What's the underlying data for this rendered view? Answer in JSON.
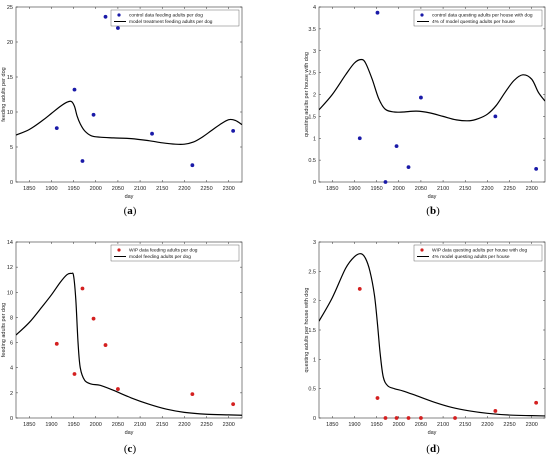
{
  "chart_data": [
    {
      "type": "scatter",
      "caption": "(a)",
      "xlabel": "day",
      "ylabel": "feeding adults per dog",
      "xlim": [
        1820,
        2330
      ],
      "ylim": [
        0,
        25
      ],
      "xticks": [
        1850,
        1900,
        1950,
        2000,
        2050,
        2100,
        2150,
        2200,
        2250,
        2300
      ],
      "yticks": [
        0,
        5,
        10,
        15,
        20,
        25
      ],
      "legend_position": "top-right",
      "series": [
        {
          "name": "control data feeding adults per dog",
          "kind": "scatter",
          "color": "#1a1aa8",
          "x": [
            1912,
            1952,
            1970,
            1995,
            2022,
            2050,
            2127,
            2218,
            2310
          ],
          "y": [
            7.7,
            13.2,
            3.0,
            9.6,
            23.6,
            22.0,
            6.9,
            2.4,
            7.3
          ]
        },
        {
          "name": "model treatment feeding adults per dog",
          "kind": "line",
          "color": "#000000",
          "x": [
            1820,
            1850,
            1880,
            1900,
            1920,
            1935,
            1945,
            1952,
            1958,
            1965,
            1975,
            1990,
            2010,
            2040,
            2080,
            2120,
            2150,
            2180,
            2200,
            2220,
            2240,
            2260,
            2280,
            2300,
            2315,
            2330
          ],
          "y": [
            6.7,
            7.5,
            8.8,
            9.8,
            10.8,
            11.4,
            11.5,
            10.8,
            9.4,
            8.3,
            7.3,
            6.6,
            6.4,
            6.3,
            6.2,
            5.9,
            5.6,
            5.4,
            5.4,
            5.7,
            6.4,
            7.3,
            8.2,
            8.9,
            8.8,
            8.2
          ]
        }
      ]
    },
    {
      "type": "scatter",
      "caption": "(b)",
      "xlabel": "day",
      "ylabel": "questing adults per house with dog",
      "xlim": [
        1820,
        2330
      ],
      "ylim": [
        0,
        4
      ],
      "xticks": [
        1850,
        1900,
        1950,
        2000,
        2050,
        2100,
        2150,
        2200,
        2250,
        2300
      ],
      "yticks": [
        0,
        0.5,
        1,
        1.5,
        2,
        2.5,
        3,
        3.5,
        4
      ],
      "legend_position": "top-right",
      "series": [
        {
          "name": "control data questing adults per house with dog",
          "kind": "scatter",
          "color": "#1a1aa8",
          "x": [
            1912,
            1952,
            1970,
            1995,
            2022,
            2050,
            2218,
            2310
          ],
          "y": [
            1.0,
            3.87,
            0.0,
            0.82,
            0.34,
            1.93,
            1.5,
            0.3
          ]
        },
        {
          "name": "4% of model questing adults per house",
          "kind": "line",
          "color": "#000000",
          "x": [
            1820,
            1850,
            1880,
            1900,
            1915,
            1925,
            1940,
            1955,
            1970,
            1990,
            2010,
            2040,
            2070,
            2100,
            2130,
            2160,
            2180,
            2200,
            2220,
            2240,
            2260,
            2280,
            2300,
            2315,
            2330
          ],
          "y": [
            1.65,
            2.0,
            2.45,
            2.72,
            2.8,
            2.72,
            2.35,
            1.9,
            1.66,
            1.6,
            1.6,
            1.62,
            1.58,
            1.5,
            1.42,
            1.4,
            1.45,
            1.55,
            1.75,
            2.05,
            2.32,
            2.45,
            2.35,
            2.05,
            1.85
          ]
        }
      ]
    },
    {
      "type": "scatter",
      "caption": "(c)",
      "xlabel": "day",
      "ylabel": "feeding adults per dog",
      "xlim": [
        1820,
        2330
      ],
      "ylim": [
        0,
        14
      ],
      "xticks": [
        1850,
        1900,
        1950,
        2000,
        2050,
        2100,
        2150,
        2200,
        2250,
        2300
      ],
      "yticks": [
        0,
        2,
        4,
        6,
        8,
        10,
        12,
        14
      ],
      "legend_position": "top-right",
      "series": [
        {
          "name": "WIP data feeding adults per dog",
          "kind": "scatter",
          "color": "#d42020",
          "x": [
            1912,
            1952,
            1970,
            1995,
            2022,
            2050,
            2218,
            2310
          ],
          "y": [
            5.9,
            3.5,
            10.3,
            7.9,
            5.8,
            2.3,
            1.9,
            1.1
          ]
        },
        {
          "name": "model feeding adults per dog",
          "kind": "line",
          "color": "#000000",
          "x": [
            1820,
            1850,
            1880,
            1900,
            1920,
            1935,
            1945,
            1950,
            1955,
            1960,
            1965,
            1975,
            1990,
            2010,
            2040,
            2080,
            2120,
            2160,
            2200,
            2250,
            2300,
            2330
          ],
          "y": [
            6.6,
            7.6,
            8.9,
            9.8,
            10.8,
            11.4,
            11.5,
            11.3,
            9.4,
            6.0,
            4.0,
            3.0,
            2.7,
            2.6,
            2.2,
            1.6,
            1.1,
            0.7,
            0.45,
            0.3,
            0.25,
            0.22
          ]
        }
      ]
    },
    {
      "type": "scatter",
      "caption": "(d)",
      "xlabel": "day",
      "ylabel": "questing adults per house with dog",
      "xlim": [
        1820,
        2330
      ],
      "ylim": [
        0,
        3
      ],
      "xticks": [
        1850,
        1900,
        1950,
        2000,
        2050,
        2100,
        2150,
        2200,
        2250,
        2300
      ],
      "yticks": [
        0,
        0.5,
        1,
        1.5,
        2,
        2.5,
        3
      ],
      "legend_position": "top-right",
      "series": [
        {
          "name": "WIP data questing adults per house with dog",
          "kind": "scatter",
          "color": "#d42020",
          "x": [
            1912,
            1952,
            1970,
            1995,
            2022,
            2050,
            2127,
            2218,
            2310
          ],
          "y": [
            2.2,
            0.34,
            0.0,
            0.0,
            0.0,
            0.0,
            0.0,
            0.12,
            0.26
          ]
        },
        {
          "name": "4% model questing adults per house",
          "kind": "line",
          "color": "#000000",
          "x": [
            1820,
            1850,
            1880,
            1900,
            1915,
            1925,
            1935,
            1945,
            1952,
            1958,
            1965,
            1975,
            1990,
            2010,
            2040,
            2080,
            2120,
            2160,
            2200,
            2250,
            2300,
            2330
          ],
          "y": [
            1.65,
            2.05,
            2.55,
            2.75,
            2.8,
            2.72,
            2.5,
            2.1,
            1.6,
            1.1,
            0.7,
            0.55,
            0.5,
            0.46,
            0.38,
            0.27,
            0.18,
            0.12,
            0.08,
            0.05,
            0.04,
            0.035
          ]
        }
      ]
    }
  ]
}
